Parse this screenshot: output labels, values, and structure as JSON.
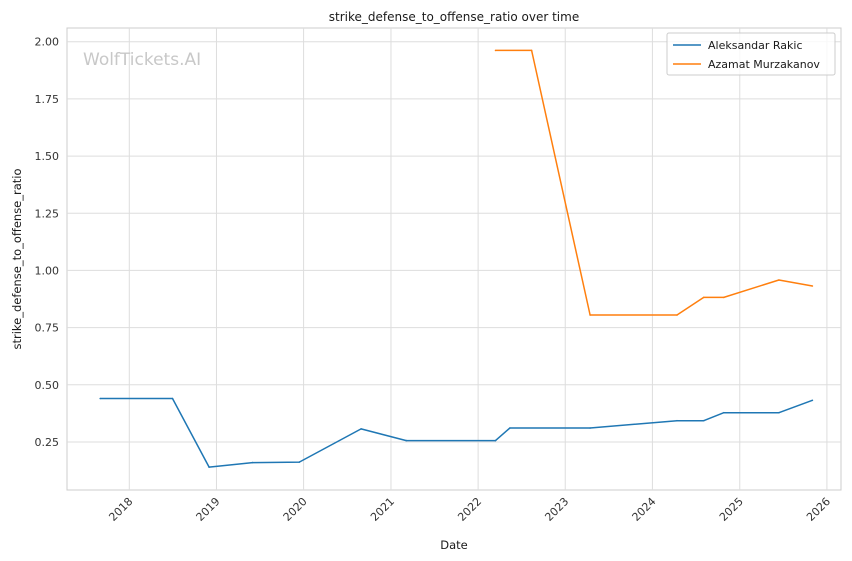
{
  "chart_data": {
    "type": "line",
    "title": "strike_defense_to_offense_ratio over time",
    "xlabel": "Date",
    "ylabel": "strike_defense_to_offense_ratio",
    "watermark": "WolfTickets.AI",
    "xlim": [
      "2017-04-15",
      "2026-03-01"
    ],
    "ylim": [
      0.04,
      2.06
    ],
    "x_ticks": [
      "2018",
      "2019",
      "2020",
      "2021",
      "2022",
      "2023",
      "2024",
      "2025",
      "2026"
    ],
    "y_ticks": [
      "0.25",
      "0.50",
      "0.75",
      "1.00",
      "1.25",
      "1.50",
      "1.75",
      "2.00"
    ],
    "grid": true,
    "legend_position": "top-right",
    "series": [
      {
        "name": "Aleksandar Rakic",
        "color": "#1f77b4",
        "points": [
          {
            "x": "2017-09-01",
            "y": 0.44
          },
          {
            "x": "2018-07-01",
            "y": 0.44
          },
          {
            "x": "2018-12-01",
            "y": 0.14
          },
          {
            "x": "2019-06-01",
            "y": 0.16
          },
          {
            "x": "2019-12-14",
            "y": 0.162
          },
          {
            "x": "2020-08-29",
            "y": 0.307
          },
          {
            "x": "2021-03-06",
            "y": 0.256
          },
          {
            "x": "2022-03-15",
            "y": 0.256
          },
          {
            "x": "2022-05-14",
            "y": 0.311
          },
          {
            "x": "2023-04-15",
            "y": 0.311
          },
          {
            "x": "2024-04-13",
            "y": 0.343
          },
          {
            "x": "2024-08-03",
            "y": 0.343
          },
          {
            "x": "2024-10-26",
            "y": 0.378
          },
          {
            "x": "2025-06-14",
            "y": 0.378
          },
          {
            "x": "2025-11-01",
            "y": 0.432
          }
        ]
      },
      {
        "name": "Azamat Murzakanov",
        "color": "#ff7f0e",
        "points": [
          {
            "x": "2022-03-15",
            "y": 1.962
          },
          {
            "x": "2022-08-13",
            "y": 1.962
          },
          {
            "x": "2023-04-15",
            "y": 0.805
          },
          {
            "x": "2024-04-13",
            "y": 0.805
          },
          {
            "x": "2024-08-03",
            "y": 0.882
          },
          {
            "x": "2024-10-26",
            "y": 0.882
          },
          {
            "x": "2025-06-14",
            "y": 0.958
          },
          {
            "x": "2025-11-01",
            "y": 0.932
          }
        ]
      }
    ]
  }
}
